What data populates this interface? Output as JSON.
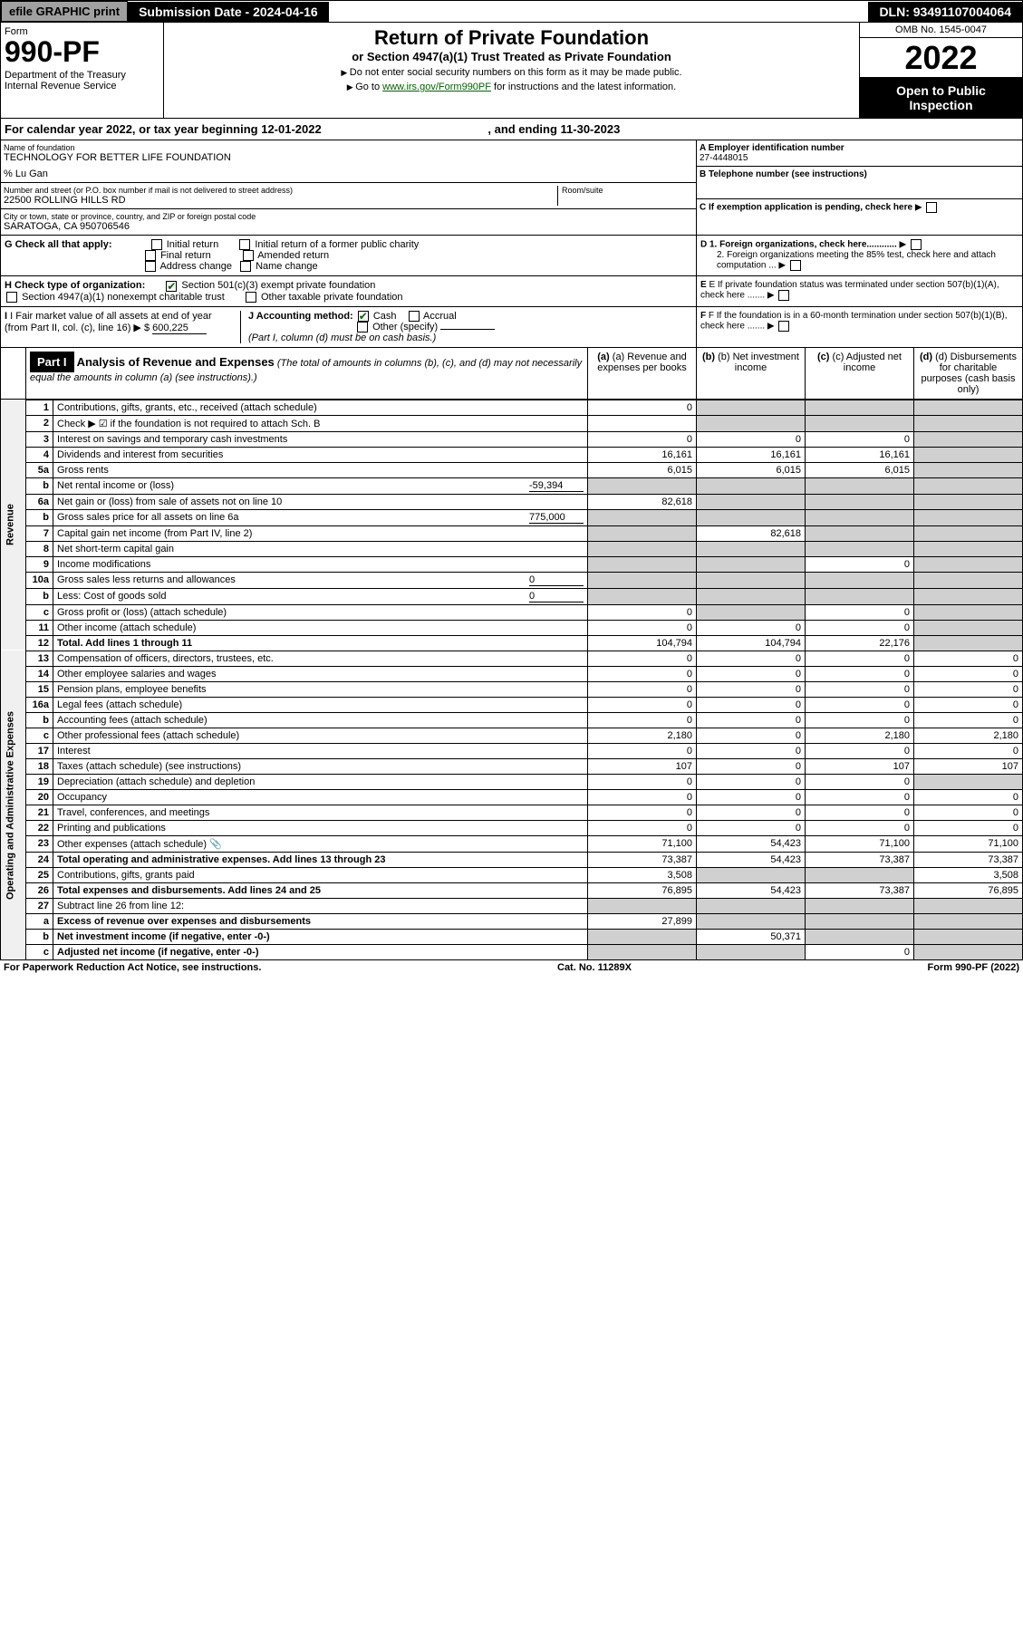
{
  "topbar": {
    "efile": "efile GRAPHIC print",
    "submission": "Submission Date - 2024-04-16",
    "dln": "DLN: 93491107004064"
  },
  "header": {
    "form": "Form",
    "formnum": "990-PF",
    "dept": "Department of the Treasury\nInternal Revenue Service",
    "title": "Return of Private Foundation",
    "subtitle": "or Section 4947(a)(1) Trust Treated as Private Foundation",
    "inst1": "Do not enter social security numbers on this form as it may be made public.",
    "inst2_pre": "Go to ",
    "inst2_link": "www.irs.gov/Form990PF",
    "inst2_post": " for instructions and the latest information.",
    "omb": "OMB No. 1545-0047",
    "year": "2022",
    "open": "Open to Public Inspection"
  },
  "calendar": {
    "text": "For calendar year 2022, or tax year beginning 12-01-2022",
    "ending": ", and ending 11-30-2023"
  },
  "foundation": {
    "name_label": "Name of foundation",
    "name": "TECHNOLOGY FOR BETTER LIFE FOUNDATION",
    "care": "% Lu Gan",
    "addr_label": "Number and street (or P.O. box number if mail is not delivered to street address)",
    "addr": "22500 ROLLING HILLS RD",
    "room_label": "Room/suite",
    "city_label": "City or town, state or province, country, and ZIP or foreign postal code",
    "city": "SARATOGA, CA  950706546",
    "ein_label": "A Employer identification number",
    "ein": "27-4448015",
    "tel_label": "B Telephone number (see instructions)",
    "c_label": "C If exemption application is pending, check here",
    "d1": "D 1. Foreign organizations, check here............",
    "d2": "2. Foreign organizations meeting the 85% test, check here and attach computation ...",
    "e": "E If private foundation status was terminated under section 507(b)(1)(A), check here .......",
    "f": "F If the foundation is in a 60-month termination under section 507(b)(1)(B), check here .......",
    "g": "G Check all that apply:",
    "g_opts": [
      "Initial return",
      "Initial return of a former public charity",
      "Final return",
      "Amended return",
      "Address change",
      "Name change"
    ],
    "h": "H Check type of organization:",
    "h1": "Section 501(c)(3) exempt private foundation",
    "h2": "Section 4947(a)(1) nonexempt charitable trust",
    "h3": "Other taxable private foundation",
    "i": "I Fair market value of all assets at end of year (from Part II, col. (c), line 16)",
    "i_val": "600,225",
    "j": "J Accounting method:",
    "j_cash": "Cash",
    "j_accrual": "Accrual",
    "j_other": "Other (specify)",
    "j_note": "(Part I, column (d) must be on cash basis.)"
  },
  "part1": {
    "label": "Part I",
    "title": "Analysis of Revenue and Expenses",
    "note": "(The total of amounts in columns (b), (c), and (d) may not necessarily equal the amounts in column (a) (see instructions).)",
    "cols": {
      "a": "(a) Revenue and expenses per books",
      "b": "(b) Net investment income",
      "c": "(c) Adjusted net income",
      "d": "(d) Disbursements for charitable purposes (cash basis only)"
    }
  },
  "sections": {
    "revenue": "Revenue",
    "expenses": "Operating and Administrative Expenses"
  },
  "rows": [
    {
      "n": "1",
      "d": "Contributions, gifts, grants, etc., received (attach schedule)",
      "a": "0"
    },
    {
      "n": "2",
      "d": "Check ▶ ☑ if the foundation is not required to attach Sch. B"
    },
    {
      "n": "3",
      "d": "Interest on savings and temporary cash investments",
      "a": "0",
      "b": "0",
      "c": "0"
    },
    {
      "n": "4",
      "d": "Dividends and interest from securities",
      "a": "16,161",
      "b": "16,161",
      "c": "16,161"
    },
    {
      "n": "5a",
      "d": "Gross rents",
      "a": "6,015",
      "b": "6,015",
      "c": "6,015"
    },
    {
      "n": "b",
      "d": "Net rental income or (loss)",
      "inline": "-59,394"
    },
    {
      "n": "6a",
      "d": "Net gain or (loss) from sale of assets not on line 10",
      "a": "82,618"
    },
    {
      "n": "b",
      "d": "Gross sales price for all assets on line 6a",
      "inline": "775,000"
    },
    {
      "n": "7",
      "d": "Capital gain net income (from Part IV, line 2)",
      "b": "82,618"
    },
    {
      "n": "8",
      "d": "Net short-term capital gain"
    },
    {
      "n": "9",
      "d": "Income modifications",
      "c": "0"
    },
    {
      "n": "10a",
      "d": "Gross sales less returns and allowances",
      "inline": "0"
    },
    {
      "n": "b",
      "d": "Less: Cost of goods sold",
      "inline": "0"
    },
    {
      "n": "c",
      "d": "Gross profit or (loss) (attach schedule)",
      "a": "0",
      "c": "0"
    },
    {
      "n": "11",
      "d": "Other income (attach schedule)",
      "a": "0",
      "b": "0",
      "c": "0"
    },
    {
      "n": "12",
      "d": "Total. Add lines 1 through 11",
      "a": "104,794",
      "b": "104,794",
      "c": "22,176",
      "bold": true
    },
    {
      "n": "13",
      "d": "Compensation of officers, directors, trustees, etc.",
      "a": "0",
      "b": "0",
      "c": "0",
      "dd": "0"
    },
    {
      "n": "14",
      "d": "Other employee salaries and wages",
      "a": "0",
      "b": "0",
      "c": "0",
      "dd": "0"
    },
    {
      "n": "15",
      "d": "Pension plans, employee benefits",
      "a": "0",
      "b": "0",
      "c": "0",
      "dd": "0"
    },
    {
      "n": "16a",
      "d": "Legal fees (attach schedule)",
      "a": "0",
      "b": "0",
      "c": "0",
      "dd": "0"
    },
    {
      "n": "b",
      "d": "Accounting fees (attach schedule)",
      "a": "0",
      "b": "0",
      "c": "0",
      "dd": "0"
    },
    {
      "n": "c",
      "d": "Other professional fees (attach schedule)",
      "a": "2,180",
      "b": "0",
      "c": "2,180",
      "dd": "2,180"
    },
    {
      "n": "17",
      "d": "Interest",
      "a": "0",
      "b": "0",
      "c": "0",
      "dd": "0"
    },
    {
      "n": "18",
      "d": "Taxes (attach schedule) (see instructions)",
      "a": "107",
      "b": "0",
      "c": "107",
      "dd": "107"
    },
    {
      "n": "19",
      "d": "Depreciation (attach schedule) and depletion",
      "a": "0",
      "b": "0",
      "c": "0"
    },
    {
      "n": "20",
      "d": "Occupancy",
      "a": "0",
      "b": "0",
      "c": "0",
      "dd": "0"
    },
    {
      "n": "21",
      "d": "Travel, conferences, and meetings",
      "a": "0",
      "b": "0",
      "c": "0",
      "dd": "0"
    },
    {
      "n": "22",
      "d": "Printing and publications",
      "a": "0",
      "b": "0",
      "c": "0",
      "dd": "0"
    },
    {
      "n": "23",
      "d": "Other expenses (attach schedule)",
      "a": "71,100",
      "b": "54,423",
      "c": "71,100",
      "dd": "71,100",
      "icon": true
    },
    {
      "n": "24",
      "d": "Total operating and administrative expenses. Add lines 13 through 23",
      "a": "73,387",
      "b": "54,423",
      "c": "73,387",
      "dd": "73,387",
      "bold": true
    },
    {
      "n": "25",
      "d": "Contributions, gifts, grants paid",
      "a": "3,508",
      "dd": "3,508"
    },
    {
      "n": "26",
      "d": "Total expenses and disbursements. Add lines 24 and 25",
      "a": "76,895",
      "b": "54,423",
      "c": "73,387",
      "dd": "76,895",
      "bold": true
    },
    {
      "n": "27",
      "d": "Subtract line 26 from line 12:"
    },
    {
      "n": "a",
      "d": "Excess of revenue over expenses and disbursements",
      "a": "27,899",
      "bold": true
    },
    {
      "n": "b",
      "d": "Net investment income (if negative, enter -0-)",
      "b": "50,371",
      "bold": true
    },
    {
      "n": "c",
      "d": "Adjusted net income (if negative, enter -0-)",
      "c": "0",
      "bold": true
    }
  ],
  "footer": {
    "left": "For Paperwork Reduction Act Notice, see instructions.",
    "center": "Cat. No. 11289X",
    "right": "Form 990-PF (2022)"
  }
}
